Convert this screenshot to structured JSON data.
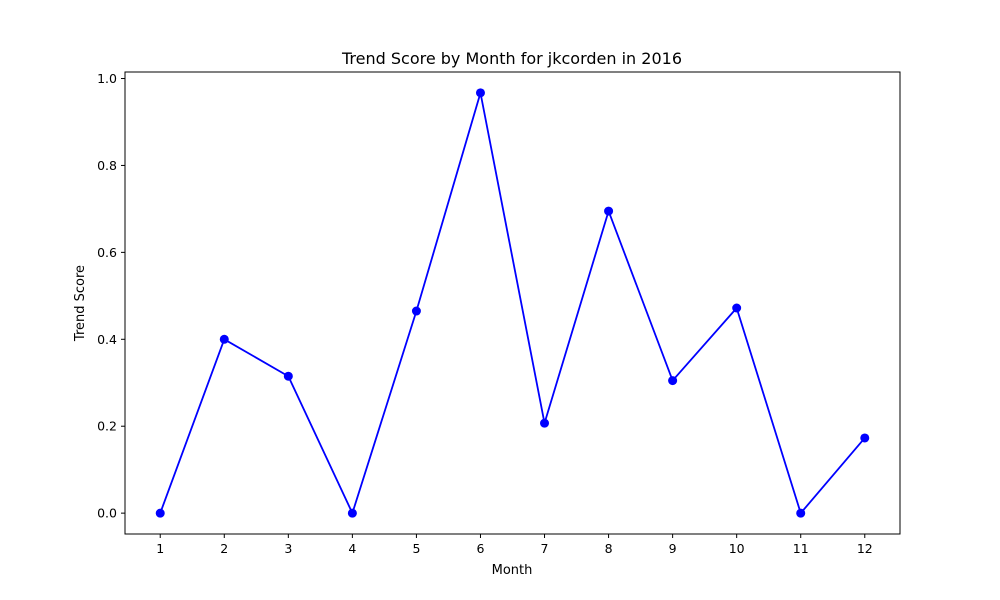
{
  "chart_data": {
    "type": "line",
    "title": "Trend Score by Month for jkcorden in 2016",
    "xlabel": "Month",
    "ylabel": "Trend Score",
    "x": [
      1,
      2,
      3,
      4,
      5,
      6,
      7,
      8,
      9,
      10,
      11,
      12
    ],
    "x_tick_labels": [
      "1",
      "2",
      "3",
      "4",
      "5",
      "6",
      "7",
      "8",
      "9",
      "10",
      "11",
      "12"
    ],
    "y_ticks": [
      0.0,
      0.2,
      0.4,
      0.6,
      0.8,
      1.0
    ],
    "y_tick_labels": [
      "0.0",
      "0.2",
      "0.4",
      "0.6",
      "0.8",
      "1.0"
    ],
    "xlim": [
      0.45,
      12.55
    ],
    "ylim": [
      -0.048,
      1.015
    ],
    "grid": false,
    "series": [
      {
        "values": [
          0.0,
          0.4,
          0.315,
          0.0,
          0.465,
          0.967,
          0.207,
          0.695,
          0.305,
          0.472,
          0.0,
          0.173
        ],
        "color": "#0000ff",
        "marker": "circle"
      }
    ]
  }
}
